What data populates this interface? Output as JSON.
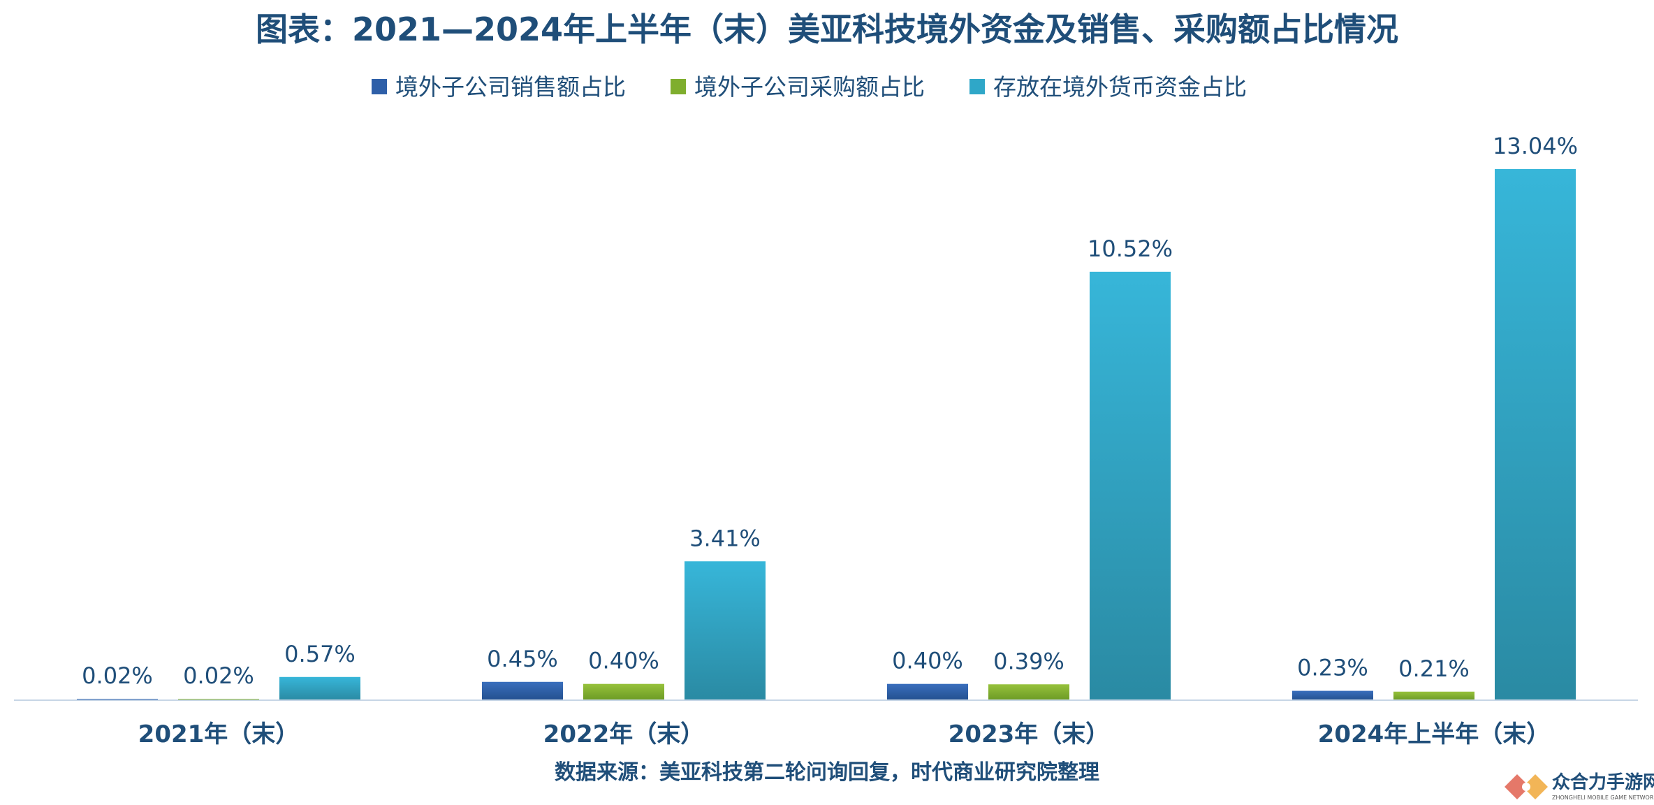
{
  "chart_data": {
    "type": "bar",
    "title": "图表：2021—2024年上半年（末）美亚科技境外资金及销售、采购额占比情况",
    "categories": [
      "2021年（末）",
      "2022年（末）",
      "2023年（末）",
      "2024年上半年（末）"
    ],
    "series": [
      {
        "name": "境外子公司销售额占比",
        "values": [
          0.02,
          0.45,
          0.4,
          0.23
        ],
        "labels": [
          "0.02%",
          "0.45%",
          "0.40%",
          "0.23%"
        ],
        "color": "#2e5fa8"
      },
      {
        "name": "境外子公司采购额占比",
        "values": [
          0.02,
          0.4,
          0.39,
          0.21
        ],
        "labels": [
          "0.02%",
          "0.40%",
          "0.39%",
          "0.21%"
        ],
        "color": "#7fae2e"
      },
      {
        "name": "存放在境外货币资金占比",
        "values": [
          0.57,
          3.41,
          10.52,
          13.04
        ],
        "labels": [
          "0.57%",
          "3.41%",
          "10.52%",
          "13.04%"
        ],
        "color": "#2fa7c8"
      }
    ],
    "ylim": [
      0,
      13.04
    ],
    "legend_position": "top",
    "grid": false
  },
  "source_note": "数据来源：美亚科技第二轮问询回复，时代商业研究院整理",
  "watermark": {
    "name": "众合力手游网",
    "subtitle": "ZHONGHELI MOBILE GAME NETWORK"
  }
}
